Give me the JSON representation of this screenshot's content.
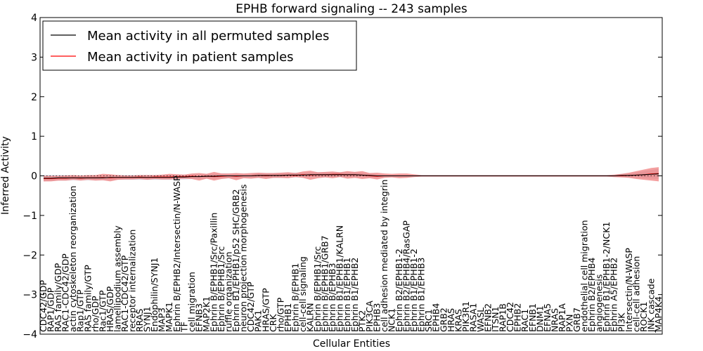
{
  "chart_data": {
    "type": "line",
    "title": "EPHB forward signaling -- 243 samples",
    "xlabel": "Cellular Entities",
    "ylabel": "Inferred Activity",
    "ylim": [
      -4,
      4
    ],
    "yticks": [
      -4,
      -3,
      -2,
      -1,
      0,
      1,
      2,
      3,
      4
    ],
    "grid": false,
    "legend_position": "top-left",
    "colors": {
      "permuted": "#000000",
      "patient": "#ff0000",
      "patient_band": "#f08080",
      "permuted_band": "#b8b8cc"
    },
    "categories": [
      "CDC42/GDP",
      "RAP1/GDP",
      "RAS family/GDP",
      "RAC1-CDC42/GDP",
      "actin cytoskeleton reorganization",
      "Rap1/GTP",
      "RAS family/GTP",
      "rho/GDP",
      "Rac1/GTP",
      "HRAS/GDP",
      "lamellipodium assembly",
      "RAC1-CDC42/GTP",
      "receptor internalization",
      "RRAS",
      "SYNJ1",
      "Endophilin/SYNJ1",
      "MAP3",
      "MAPK1",
      "Ephrin B/EPHB2/Intersectin/N-WASP",
      "TF",
      "cell migration",
      "EFNB3",
      "MAP2K1",
      "Ephrin B/EPHB1/Src/Paxillin",
      "Ephrin B/EPHB1/Src",
      "ruffle organization",
      "Ephrin B1/EPHB1/p52 SHC/GRB2",
      "neuron projection morphogenesis",
      "CDC42/GTP",
      "PAK1",
      "HRAS/GTP",
      "CRK",
      "rho/GTP",
      "EPHB1",
      "Ephrin B/EPHB1",
      "cell-cell signaling",
      "KALRN",
      "Ephrin B/EPHB1/Src",
      "Ephrin B/EPHB1/GRB7",
      "Ephrin B/EPHB3",
      "Ephrin B1/EPHB1/KALRN",
      "Ephrin B1/EPHB1",
      "Ephrin B1/EPHB2",
      "PTK2",
      "PIK3CA",
      "EPHB3",
      "cell adhesion mediated by integrin",
      "NCK1",
      "Ephrin B2/EPHB1-2",
      "Ephrin B2/EPHB4/RasGAP",
      "Ephrin B1/EPHB1-2",
      "Ephrin B1/EPHB3",
      "SRC1",
      "EPHB4",
      "GRB2",
      "HRAS",
      "KRAS",
      "PIK3R1",
      "RASA1",
      "WASL",
      "EFNB2",
      "ITSN1",
      "RAP1B",
      "CDC42",
      "EPHB2",
      "RAC1",
      "EFNB1",
      "DNM1",
      "EFNA5",
      "NRAS",
      "RAP1A",
      "PXN",
      "GRB7",
      "endothelial cell migration",
      "Ephrin B2/EPHB4",
      "angiogenesis",
      "Ephrin B1/EPHB1-2/NCK1",
      "Ephrin A5/EPHB2",
      "PI3K",
      "Intersectin/N-WASP",
      "cell-cell adhesion",
      "ROCK1",
      "JNK cascade",
      "MAP4K4"
    ],
    "series": [
      {
        "name": "Mean activity in all permuted samples",
        "values": [
          -0.06,
          -0.06,
          -0.05,
          -0.05,
          -0.05,
          -0.05,
          -0.05,
          -0.05,
          -0.05,
          -0.04,
          -0.04,
          -0.04,
          -0.04,
          -0.04,
          -0.04,
          -0.04,
          -0.04,
          -0.04,
          -0.03,
          -0.03,
          -0.02,
          -0.02,
          -0.01,
          -0.01,
          0.0,
          0.0,
          0.0,
          0.0,
          0.0,
          0.01,
          0.01,
          0.01,
          0.01,
          0.02,
          0.02,
          0.02,
          0.03,
          0.03,
          0.03,
          0.03,
          0.03,
          0.03,
          0.03,
          0.02,
          0.01,
          0.0,
          0.0,
          0.0,
          0.0,
          0.0,
          0.0,
          0.0,
          0.0,
          0.0,
          0.0,
          0.0,
          0.0,
          0.0,
          0.0,
          0.0,
          0.0,
          0.0,
          0.0,
          0.0,
          0.0,
          0.0,
          0.0,
          0.0,
          0.0,
          0.0,
          0.0,
          0.0,
          0.0,
          0.0,
          0.0,
          0.0,
          0.0,
          0.0,
          0.01,
          0.01,
          0.02,
          0.03,
          0.04,
          0.05
        ],
        "band_low": [
          -0.14,
          -0.13,
          -0.12,
          -0.12,
          -0.11,
          -0.11,
          -0.11,
          -0.11,
          -0.11,
          -0.11,
          -0.1,
          -0.1,
          -0.1,
          -0.1,
          -0.1,
          -0.1,
          -0.1,
          -0.1,
          -0.09,
          -0.09,
          -0.08,
          -0.08,
          -0.07,
          -0.07,
          -0.06,
          -0.06,
          -0.06,
          -0.05,
          -0.05,
          -0.05,
          -0.05,
          -0.05,
          -0.05,
          -0.04,
          -0.04,
          -0.04,
          -0.03,
          -0.03,
          -0.03,
          -0.03,
          -0.03,
          -0.03,
          -0.03,
          -0.04,
          -0.04,
          -0.04,
          -0.03,
          -0.03,
          -0.03,
          -0.03,
          -0.02,
          -0.02,
          -0.02,
          -0.02,
          -0.02,
          -0.02,
          -0.02,
          -0.02,
          -0.02,
          -0.02,
          -0.02,
          -0.02,
          -0.02,
          -0.02,
          -0.02,
          -0.02,
          -0.02,
          -0.02,
          -0.02,
          -0.02,
          -0.02,
          -0.02,
          -0.02,
          -0.02,
          -0.02,
          -0.02,
          -0.02,
          -0.03,
          -0.03,
          -0.04,
          -0.05,
          -0.06,
          -0.07,
          -0.08
        ],
        "band_high": [
          0.02,
          0.02,
          0.02,
          0.02,
          0.01,
          0.01,
          0.01,
          0.01,
          0.01,
          0.02,
          0.02,
          0.02,
          0.02,
          0.02,
          0.02,
          0.02,
          0.02,
          0.02,
          0.03,
          0.03,
          0.04,
          0.04,
          0.05,
          0.05,
          0.06,
          0.06,
          0.06,
          0.05,
          0.05,
          0.07,
          0.07,
          0.07,
          0.07,
          0.08,
          0.08,
          0.08,
          0.09,
          0.09,
          0.09,
          0.09,
          0.09,
          0.09,
          0.09,
          0.08,
          0.06,
          0.04,
          0.03,
          0.03,
          0.03,
          0.03,
          0.02,
          0.02,
          0.02,
          0.02,
          0.02,
          0.02,
          0.02,
          0.02,
          0.02,
          0.02,
          0.02,
          0.02,
          0.02,
          0.02,
          0.02,
          0.02,
          0.02,
          0.02,
          0.02,
          0.02,
          0.02,
          0.02,
          0.02,
          0.02,
          0.02,
          0.02,
          0.02,
          0.03,
          0.05,
          0.06,
          0.09,
          0.12,
          0.15,
          0.18
        ]
      },
      {
        "name": "Mean activity in patient samples",
        "values": [
          -0.07,
          -0.07,
          -0.06,
          -0.06,
          -0.05,
          -0.06,
          -0.05,
          -0.05,
          -0.04,
          -0.05,
          -0.04,
          -0.04,
          -0.04,
          -0.03,
          -0.04,
          -0.03,
          -0.03,
          -0.03,
          -0.02,
          -0.02,
          -0.01,
          -0.02,
          -0.01,
          -0.02,
          -0.01,
          0.0,
          -0.01,
          0.0,
          0.0,
          0.01,
          0.0,
          0.01,
          0.01,
          0.02,
          0.01,
          0.03,
          0.02,
          0.03,
          0.03,
          0.04,
          0.04,
          0.03,
          0.03,
          0.02,
          0.0,
          -0.01,
          0.0,
          0.0,
          0.0,
          0.0,
          0.0,
          0.0,
          0.0,
          0.0,
          0.0,
          0.0,
          0.0,
          0.0,
          0.0,
          0.0,
          0.0,
          0.0,
          0.0,
          0.0,
          0.0,
          0.0,
          0.0,
          0.0,
          0.0,
          0.0,
          0.0,
          0.0,
          0.0,
          0.0,
          0.0,
          0.0,
          0.0,
          0.0,
          0.0,
          0.01,
          0.02,
          0.03,
          0.05,
          0.06
        ],
        "band_low": [
          -0.14,
          -0.14,
          -0.12,
          -0.12,
          -0.1,
          -0.12,
          -0.1,
          -0.12,
          -0.11,
          -0.14,
          -0.1,
          -0.09,
          -0.09,
          -0.08,
          -0.1,
          -0.08,
          -0.09,
          -0.09,
          -0.08,
          -0.07,
          -0.08,
          -0.12,
          -0.07,
          -0.12,
          -0.08,
          -0.06,
          -0.11,
          -0.06,
          -0.07,
          -0.05,
          -0.08,
          -0.05,
          -0.05,
          -0.06,
          -0.03,
          -0.05,
          -0.1,
          -0.06,
          -0.04,
          -0.06,
          -0.03,
          -0.07,
          -0.05,
          -0.08,
          -0.06,
          -0.09,
          -0.05,
          -0.04,
          -0.06,
          -0.05,
          -0.03,
          -0.02,
          -0.02,
          -0.02,
          -0.02,
          -0.02,
          -0.02,
          -0.02,
          -0.02,
          -0.02,
          -0.02,
          -0.02,
          -0.02,
          -0.02,
          -0.02,
          -0.02,
          -0.02,
          -0.02,
          -0.02,
          -0.02,
          -0.02,
          -0.02,
          -0.02,
          -0.02,
          -0.02,
          -0.02,
          -0.02,
          -0.03,
          -0.04,
          -0.05,
          -0.08,
          -0.1,
          -0.12,
          -0.14
        ],
        "band_high": [
          0.0,
          0.0,
          0.0,
          0.01,
          0.02,
          0.01,
          0.02,
          0.02,
          0.05,
          0.04,
          0.02,
          0.01,
          0.01,
          0.02,
          0.02,
          0.02,
          0.03,
          0.05,
          0.04,
          0.03,
          0.06,
          0.07,
          0.05,
          0.1,
          0.06,
          0.06,
          0.07,
          0.06,
          0.07,
          0.08,
          0.07,
          0.07,
          0.08,
          0.09,
          0.07,
          0.11,
          0.13,
          0.09,
          0.1,
          0.11,
          0.09,
          0.12,
          0.1,
          0.12,
          0.07,
          0.08,
          0.06,
          0.05,
          0.06,
          0.06,
          0.04,
          0.02,
          0.02,
          0.02,
          0.02,
          0.02,
          0.02,
          0.02,
          0.02,
          0.02,
          0.02,
          0.02,
          0.02,
          0.02,
          0.02,
          0.02,
          0.02,
          0.02,
          0.02,
          0.02,
          0.02,
          0.02,
          0.02,
          0.02,
          0.02,
          0.02,
          0.02,
          0.03,
          0.05,
          0.08,
          0.12,
          0.16,
          0.2,
          0.22
        ]
      }
    ]
  }
}
